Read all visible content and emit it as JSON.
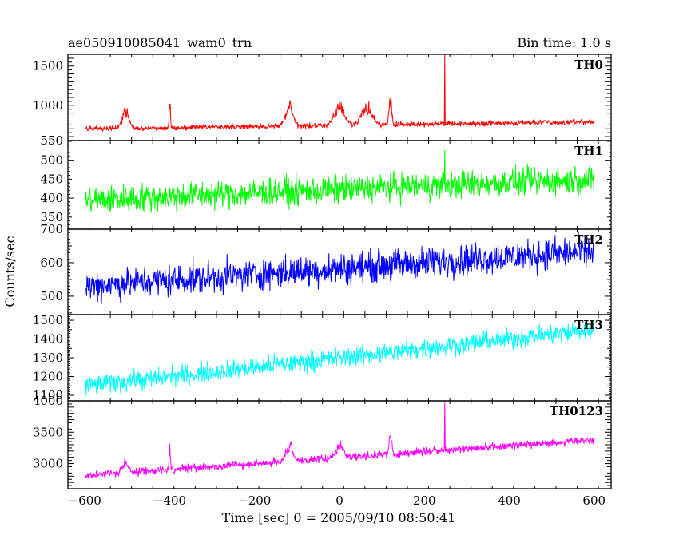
{
  "chart_data": {
    "type": "line",
    "title": "ae050910085041_wam0_trn",
    "subtitle": "Bin time: 1.0 s",
    "xlabel": "Time [sec] 0 = 2005/09/10 08:50:41",
    "ylabel": "Counts/sec",
    "xlim": [
      -640,
      640
    ],
    "x_ticks": [
      -600,
      -400,
      -200,
      0,
      200,
      400,
      600
    ],
    "x_tick_labels": [
      "−600",
      "−400",
      "−200",
      "0",
      "200",
      "400",
      "600"
    ],
    "x_range_data": [
      -600,
      600
    ],
    "bin_time": 1.0,
    "grid": false,
    "panels": [
      {
        "name": "TH0",
        "color": "#ff0000",
        "ylim": [
          550,
          1650
        ],
        "y_ticks": [
          550,
          1000,
          1500
        ],
        "baseline_start": 700,
        "baseline_end": 790,
        "noise_amplitude": 30,
        "peaks": [
          {
            "t": -505,
            "height": 280,
            "width": 8
          },
          {
            "t": -400,
            "height": 400,
            "width": 1.5
          },
          {
            "t": -118,
            "height": 330,
            "width": 8
          },
          {
            "t": 0,
            "height": 290,
            "width": 12
          },
          {
            "t": 65,
            "height": 280,
            "width": 12
          },
          {
            "t": 120,
            "height": 410,
            "width": 3
          },
          {
            "t": 248,
            "height": 900,
            "width": 1
          }
        ]
      },
      {
        "name": "TH1",
        "color": "#00ff00",
        "ylim": [
          318,
          552
        ],
        "y_ticks": [
          350,
          400,
          450,
          500
        ],
        "baseline_start": 395,
        "baseline_end": 450,
        "noise_amplitude": 33,
        "peaks": [
          {
            "t": 248,
            "height": 130,
            "width": 1
          }
        ]
      },
      {
        "name": "TH2",
        "color": "#0000ff",
        "ylim": [
          445,
          700
        ],
        "y_ticks": [
          500,
          600,
          700
        ],
        "baseline_start": 530,
        "baseline_end": 635,
        "noise_amplitude": 42,
        "peaks": []
      },
      {
        "name": "TH3",
        "color": "#00ffff",
        "ylim": [
          1070,
          1530
        ],
        "y_ticks": [
          1100,
          1200,
          1300,
          1400,
          1500
        ],
        "baseline_start": 1150,
        "baseline_end": 1450,
        "noise_amplitude": 48,
        "peaks": []
      },
      {
        "name": "TH0123",
        "color": "#ff00ff",
        "ylim": [
          2600,
          4000
        ],
        "y_ticks": [
          3000,
          3500,
          4000
        ],
        "baseline_start": 2810,
        "baseline_end": 3380,
        "noise_amplitude": 55,
        "peaks": [
          {
            "t": -505,
            "height": 230,
            "width": 6
          },
          {
            "t": -400,
            "height": 420,
            "width": 1.5
          },
          {
            "t": -118,
            "height": 320,
            "width": 8
          },
          {
            "t": 0,
            "height": 230,
            "width": 10
          },
          {
            "t": 120,
            "height": 380,
            "width": 3
          },
          {
            "t": 248,
            "height": 1100,
            "width": 1
          }
        ]
      }
    ]
  }
}
